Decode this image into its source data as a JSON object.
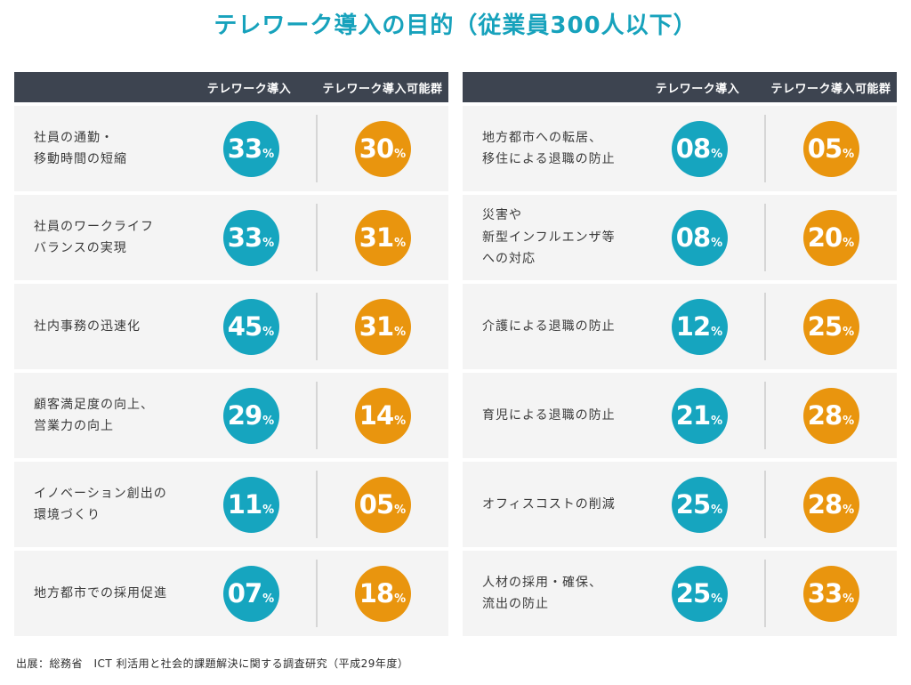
{
  "title": "テレワーク導入の目的（従業員300人以下）",
  "columns": {
    "introduced": "テレワーク導入",
    "possible": "テレワーク導入可能群"
  },
  "percent_sign": "%",
  "colors": {
    "title_teal": "#17a2bc",
    "circle_teal": "#16a5bf",
    "circle_orange": "#e9950e",
    "header_bg": "#3d4450",
    "row_bg": "#f4f4f4"
  },
  "panels": [
    {
      "rows": [
        {
          "label": "社員の通勤・\n移動時間の短縮",
          "introduced": "33",
          "possible": "30"
        },
        {
          "label": "社員のワークライフ\nバランスの実現",
          "introduced": "33",
          "possible": "31"
        },
        {
          "label": "社内事務の迅速化",
          "introduced": "45",
          "possible": "31"
        },
        {
          "label": "顧客満足度の向上、\n営業力の向上",
          "introduced": "29",
          "possible": "14"
        },
        {
          "label": "イノベーション創出の\n環境づくり",
          "introduced": "11",
          "possible": "05"
        },
        {
          "label": "地方都市での採用促進",
          "introduced": "07",
          "possible": "18"
        }
      ]
    },
    {
      "rows": [
        {
          "label": "地方都市への転居、\n移住による退職の防止",
          "introduced": "08",
          "possible": "05"
        },
        {
          "label": "災害や\n新型インフルエンザ等\nへの対応",
          "introduced": "08",
          "possible": "20"
        },
        {
          "label": "介護による退職の防止",
          "introduced": "12",
          "possible": "25"
        },
        {
          "label": "育児による退職の防止",
          "introduced": "21",
          "possible": "28"
        },
        {
          "label": "オフィスコストの削減",
          "introduced": "25",
          "possible": "28"
        },
        {
          "label": "人材の採用・確保、\n流出の防止",
          "introduced": "25",
          "possible": "33"
        }
      ]
    }
  ],
  "source": "出展：総務省　ICT 利活用と社会的課題解決に関する調査研究（平成29年度）",
  "chart_data": {
    "type": "table",
    "title": "テレワーク導入の目的（従業員300人以下）",
    "unit": "%",
    "categories": [
      "社員の通勤・移動時間の短縮",
      "社員のワークライフバランスの実現",
      "社内事務の迅速化",
      "顧客満足度の向上、営業力の向上",
      "イノベーション創出の環境づくり",
      "地方都市での採用促進",
      "地方都市への転居、移住による退職の防止",
      "災害や新型インフルエンザ等への対応",
      "介護による退職の防止",
      "育児による退職の防止",
      "オフィスコストの削減",
      "人材の採用・確保、流出の防止"
    ],
    "series": [
      {
        "name": "テレワーク導入",
        "values": [
          33,
          33,
          45,
          29,
          11,
          7,
          8,
          8,
          12,
          21,
          25,
          25
        ]
      },
      {
        "name": "テレワーク導入可能群",
        "values": [
          30,
          31,
          31,
          14,
          5,
          18,
          5,
          20,
          25,
          28,
          28,
          33
        ]
      }
    ],
    "legend_position": "column headers",
    "source": "出展：総務省　ICT 利活用と社会的課題解決に関する調査研究（平成29年度）"
  }
}
